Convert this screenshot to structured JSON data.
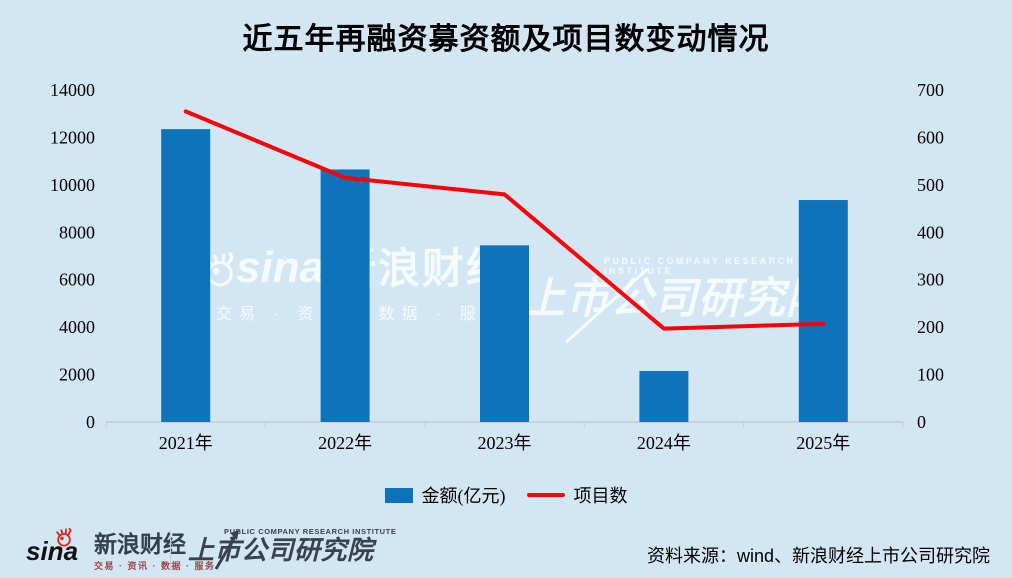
{
  "title": "近五年再融资募资额及项目数变动情况",
  "colors": {
    "background": "#d3e6f4",
    "bar": "#0e73ba",
    "line": "#fb0305",
    "axis": "#c9c9c9",
    "sina_red": "#e2231a",
    "footer_dark": "#39434e"
  },
  "chart_data": {
    "type": "combo",
    "title": "近五年再融资募资额及项目数变动情况",
    "categories": [
      "2021年",
      "2022年",
      "2023年",
      "2024年",
      "2025年"
    ],
    "series": [
      {
        "name": "金额(亿元)",
        "type": "bar",
        "axis": "left",
        "color": "#0e73ba",
        "values": [
          12350,
          10650,
          7450,
          2150,
          9360
        ]
      },
      {
        "name": "项目数",
        "type": "line",
        "axis": "right",
        "color": "#fb0305",
        "values": [
          655,
          515,
          480,
          197,
          207
        ]
      }
    ],
    "left_axis": {
      "min": 0,
      "max": 14000,
      "step": 2000,
      "ticks": [
        "0",
        "2000",
        "4000",
        "6000",
        "8000",
        "10000",
        "12000",
        "14000"
      ]
    },
    "right_axis": {
      "min": 0,
      "max": 700,
      "step": 100,
      "ticks": [
        "0",
        "100",
        "200",
        "300",
        "400",
        "500",
        "600",
        "700"
      ]
    },
    "grid": false,
    "legend_position": "bottom"
  },
  "watermarks": {
    "left": {
      "brand": "sina",
      "cn": "新浪财经",
      "tagline": "交易 · 资讯 · 数据 · 服务"
    },
    "right": {
      "caption": "PUBLIC COMPANY RESEARCH INSTITUTE",
      "cn": "上市公司研究院"
    }
  },
  "footer": {
    "sina_logo": {
      "brand": "sina",
      "name": "新浪财经",
      "tagline": "交易 · 资讯 · 数据 · 服务"
    },
    "institute_logo": {
      "caption": "PUBLIC COMPANY RESEARCH INSTITUTE",
      "name": "上市公司研究院"
    },
    "source": "资料来源：wind、新浪财经上市公司研究院"
  }
}
